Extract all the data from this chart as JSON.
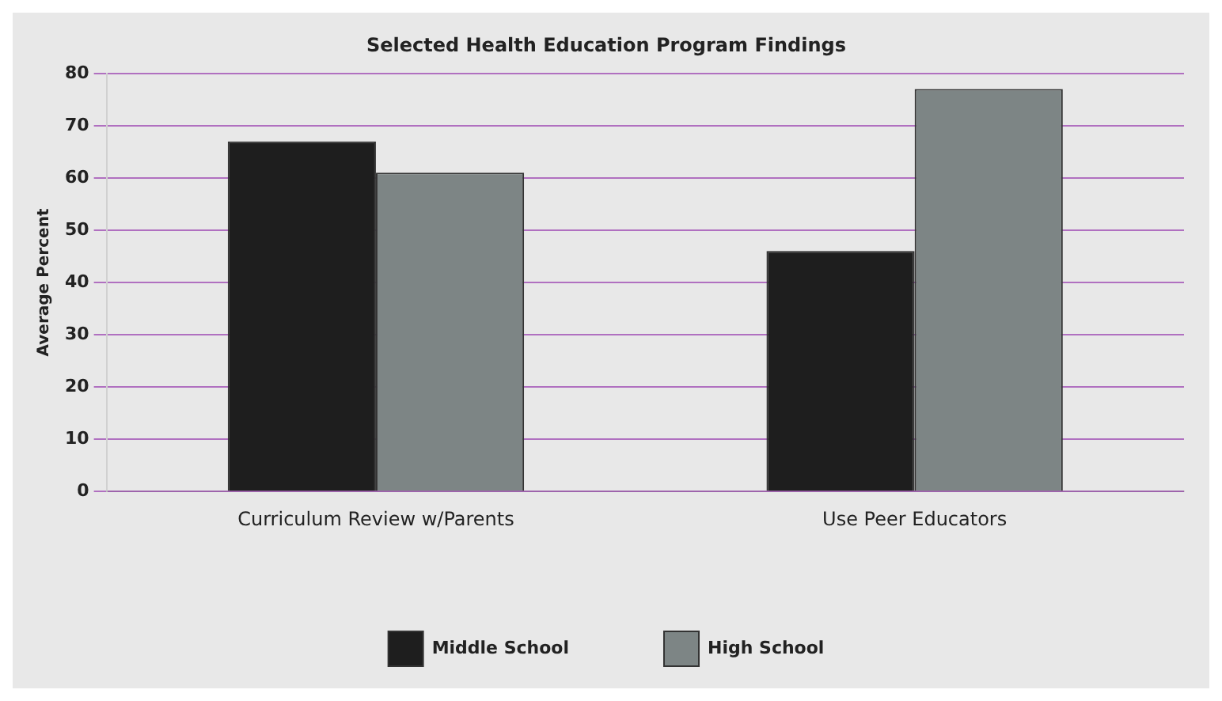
{
  "chart_data": {
    "type": "bar",
    "title": "Selected Health Education Program Findings",
    "ylabel": "Average Percent",
    "categories": [
      "Curriculum Review w/Parents",
      "Use Peer Educators"
    ],
    "series": [
      {
        "name": "Middle School",
        "color": "#1e1e1e",
        "values": [
          67,
          46
        ]
      },
      {
        "name": "High School",
        "color": "#7d8585",
        "values": [
          61,
          77
        ]
      }
    ],
    "ylim": [
      0,
      80
    ],
    "yticks": [
      0,
      10,
      20,
      30,
      40,
      50,
      60,
      70,
      80
    ],
    "grid": "y",
    "legend": "bottom"
  }
}
